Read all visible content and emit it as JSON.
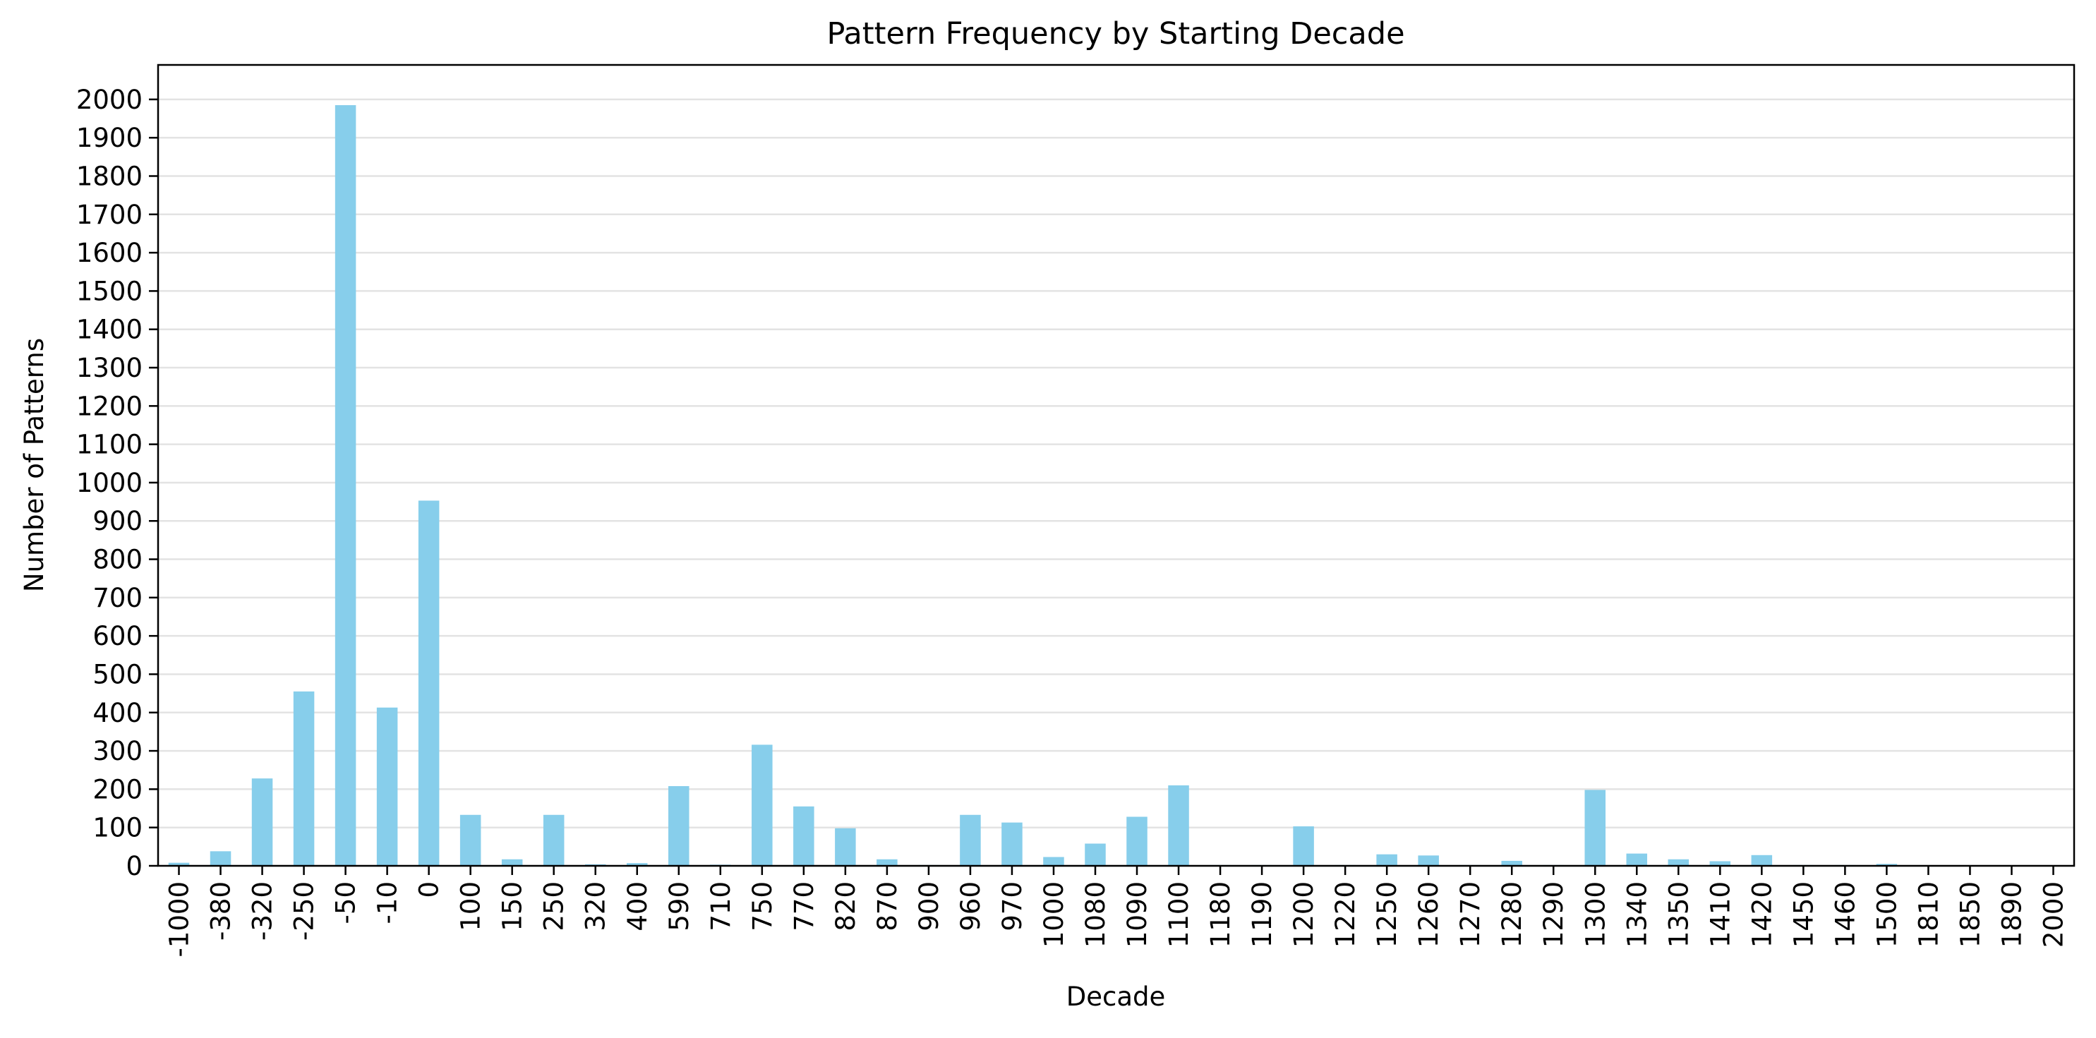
{
  "chart_data": {
    "type": "bar",
    "title": "Pattern Frequency by Starting Decade",
    "xlabel": "Decade",
    "ylabel": "Number of Patterns",
    "ylim": [
      0,
      2090
    ],
    "yticks": [
      0,
      100,
      200,
      300,
      400,
      500,
      600,
      700,
      800,
      900,
      1000,
      1100,
      1200,
      1300,
      1400,
      1500,
      1600,
      1700,
      1800,
      1900,
      2000
    ],
    "grid": "horizontal",
    "legend": "none",
    "bar_color": "#87CEEB",
    "categories": [
      "-1000",
      "-380",
      "-320",
      "-250",
      "-50",
      "-10",
      "0",
      "100",
      "150",
      "250",
      "320",
      "400",
      "590",
      "710",
      "750",
      "770",
      "820",
      "870",
      "900",
      "960",
      "970",
      "1000",
      "1080",
      "1090",
      "1100",
      "1180",
      "1190",
      "1200",
      "1220",
      "1250",
      "1260",
      "1270",
      "1280",
      "1290",
      "1300",
      "1340",
      "1350",
      "1410",
      "1420",
      "1450",
      "1460",
      "1500",
      "1810",
      "1850",
      "1890",
      "2000"
    ],
    "values": [
      8,
      38,
      228,
      455,
      1985,
      413,
      953,
      133,
      17,
      133,
      4,
      7,
      208,
      3,
      316,
      155,
      98,
      17,
      2,
      133,
      113,
      23,
      58,
      128,
      210,
      2,
      2,
      103,
      2,
      30,
      27,
      2,
      13,
      2,
      198,
      32,
      17,
      12,
      28,
      2,
      2,
      5,
      1,
      1,
      1,
      1
    ]
  }
}
